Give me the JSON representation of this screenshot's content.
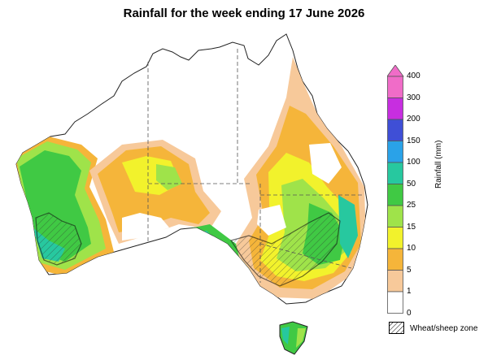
{
  "title": "Rainfall for the week ending 17 June 2026",
  "legend": {
    "axis_label": "Rainfall (mm)",
    "ticks": [
      "400",
      "300",
      "200",
      "150",
      "100",
      "50",
      "25",
      "15",
      "10",
      "5",
      "1",
      "0"
    ],
    "bands": [
      {
        "range": "300-400",
        "color": "#f06cc8"
      },
      {
        "range": "200-300",
        "color": "#c72ee0"
      },
      {
        "range": "150-200",
        "color": "#3f4fd6"
      },
      {
        "range": "100-150",
        "color": "#2aa2e8"
      },
      {
        "range": "50-100",
        "color": "#27c89f"
      },
      {
        "range": "25-50",
        "color": "#40c944"
      },
      {
        "range": "15-25",
        "color": "#9fe34a"
      },
      {
        "range": "10-15",
        "color": "#f2f22c"
      },
      {
        "range": "5-10",
        "color": "#f5b53a"
      },
      {
        "range": "1-5",
        "color": "#f7c99a"
      },
      {
        "range": "0-1",
        "color": "#ffffff"
      }
    ],
    "zone_label": "Wheat/sheep zone"
  }
}
